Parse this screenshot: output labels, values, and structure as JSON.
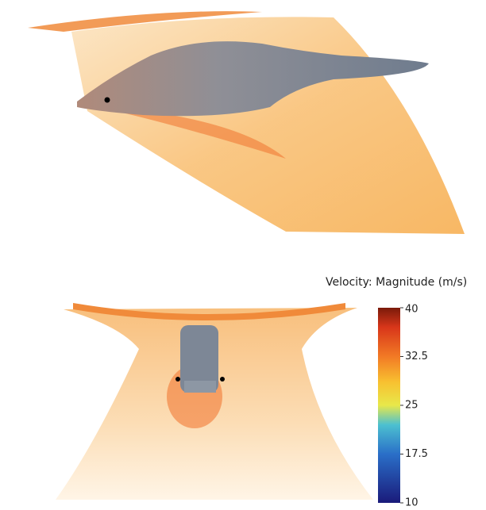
{
  "colorbar": {
    "title": "Velocity: Magnitude (m/s)",
    "range": [
      10,
      40
    ],
    "ticks": [
      40,
      32.5,
      25,
      17.5,
      10
    ]
  }
}
